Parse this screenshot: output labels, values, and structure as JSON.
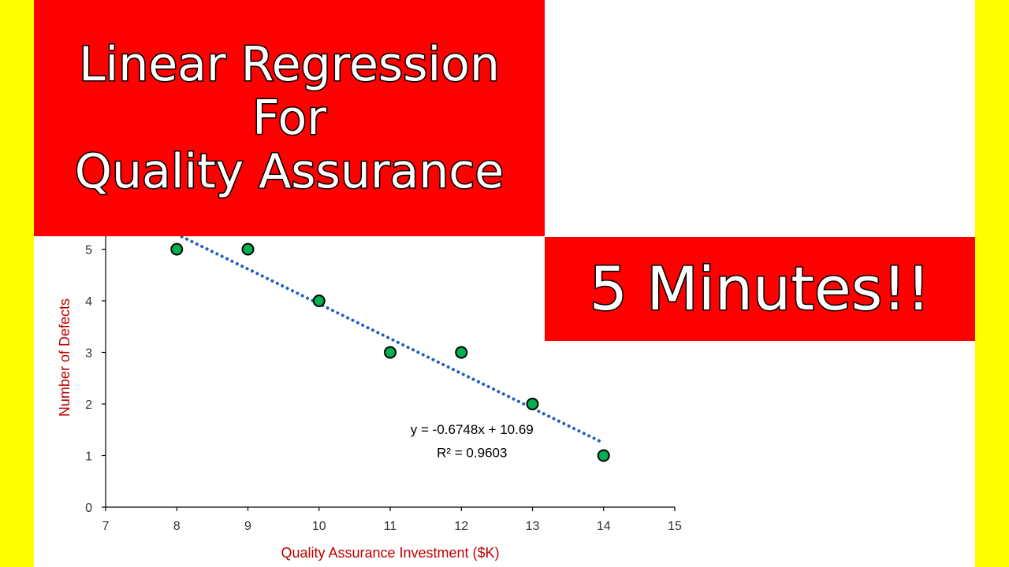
{
  "banner": {
    "title_lines": [
      "Linear Regression",
      "For",
      "Quality Assurance"
    ],
    "subtitle": "5 Minutes!!"
  },
  "colors": {
    "side_background": "#ffff00",
    "banner": "#ff0000",
    "point_fill": "#00b050",
    "trendline": "#1f5fc1",
    "axis_title": "#c00000"
  },
  "chart_data": {
    "type": "scatter",
    "xlabel": "Quality Assurance Investment ($K)",
    "ylabel": "Number of Defects",
    "xlim": [
      7,
      15
    ],
    "ylim": [
      0,
      6
    ],
    "x_ticks": [
      7,
      8,
      9,
      10,
      11,
      12,
      13,
      14,
      15
    ],
    "y_ticks": [
      0,
      1,
      2,
      3,
      4,
      5
    ],
    "grid": false,
    "series": [
      {
        "points": [
          [
            8,
            5
          ],
          [
            9,
            5
          ],
          [
            10,
            4
          ],
          [
            11,
            3
          ],
          [
            12,
            3
          ],
          [
            13,
            2
          ],
          [
            14,
            1
          ]
        ]
      }
    ],
    "trendline": {
      "style": "dotted",
      "slope": -0.6748,
      "intercept": 10.69,
      "x_range": [
        8,
        14
      ]
    },
    "annotations": [
      "y = -0.6748x + 10.69",
      "R² = 0.9603"
    ]
  }
}
